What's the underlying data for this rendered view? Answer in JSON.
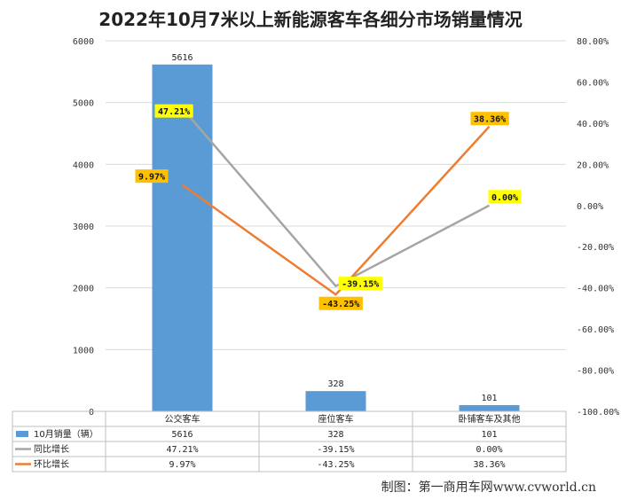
{
  "chart_data": {
    "type": "bar",
    "title": "2022年10月7米以上新能源客车各细分市场销量情况",
    "categories": [
      "公交客车",
      "座位客车",
      "卧铺客车及其他"
    ],
    "series": [
      {
        "name": "10月销量（辆）",
        "kind": "bar",
        "axis": "left",
        "values": [
          5616,
          328,
          101
        ],
        "labels": [
          "5616",
          "328",
          "101"
        ],
        "table": [
          "5616",
          "328",
          "101"
        ]
      },
      {
        "name": "同比增长",
        "kind": "line",
        "axis": "right",
        "values": [
          47.21,
          -39.15,
          0.0
        ],
        "labels": [
          "47.21%",
          "-39.15%",
          "0.00%"
        ],
        "table": [
          "47.21%",
          "-39.15%",
          "0.00%"
        ]
      },
      {
        "name": "环比增长",
        "kind": "line",
        "axis": "right",
        "values": [
          9.97,
          -43.25,
          38.36
        ],
        "labels": [
          "9.97%",
          "-43.25%",
          "38.36%"
        ],
        "table": [
          "9.97%",
          "-43.25%",
          "38.36%"
        ]
      }
    ],
    "y_left": {
      "min": 0,
      "max": 6000,
      "ticks": [
        "0",
        "1000",
        "2000",
        "3000",
        "4000",
        "5000",
        "6000"
      ]
    },
    "y_right": {
      "min": -100,
      "max": 80,
      "ticks": [
        "80.00%",
        "60.00%",
        "40.00%",
        "20.00%",
        "0.00%",
        "-20.00%",
        "-40.00%",
        "-60.00%",
        "-80.00%",
        "-100.00%"
      ]
    },
    "colors": {
      "bar": "#5b9bd5",
      "yoy": "#a5a5a5",
      "mom": "#ed7d31",
      "label_yellow": "#ffff00",
      "label_orange": "#ffc000"
    }
  },
  "footer": "制图：第一商用车网www.cvworld.cn"
}
